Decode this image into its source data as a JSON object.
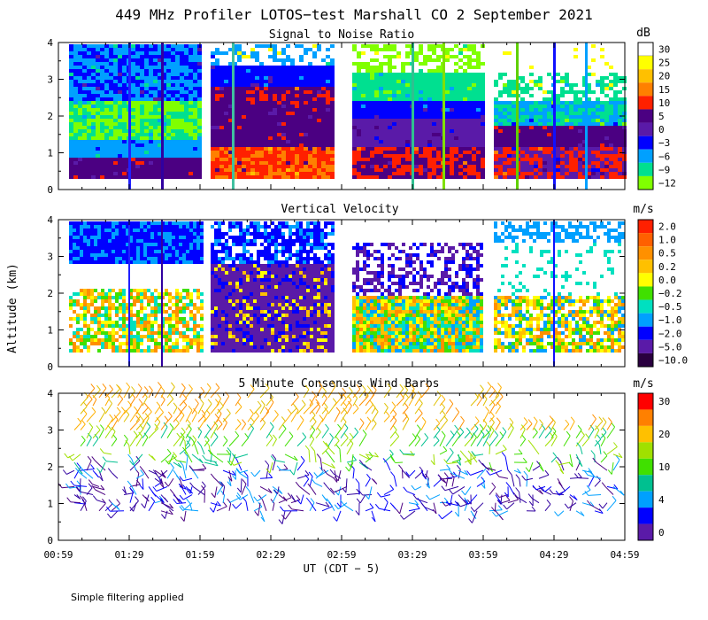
{
  "figure": {
    "title": "449 MHz Profiler LOTOS−test Marshall CO  2 September 2021",
    "y_axis_label": "Altitude (km)",
    "x_axis_label": "UT  (CDT − 5)",
    "footnote": "Simple filtering applied"
  },
  "chart_data": [
    {
      "type": "heatmap",
      "title": "Signal to Noise Ratio",
      "unit": "dB",
      "ylim": [
        0,
        4
      ],
      "yticks": [
        "0",
        "1",
        "2",
        "3",
        "4"
      ],
      "xticks": [
        "00:59",
        "01:29",
        "01:59",
        "02:29",
        "02:59",
        "03:29",
        "03:59",
        "04:29",
        "04:59"
      ],
      "colorbar": {
        "labels": [
          "30",
          "25",
          "20",
          "15",
          "10",
          "5",
          "0",
          "−3",
          "−6",
          "−9",
          "−12"
        ],
        "colors": [
          "#ffffff",
          "#ffff00",
          "#ffc000",
          "#ff8000",
          "#ff2000",
          "#4b0082",
          "#5a1aa8",
          "#0000ff",
          "#00a0ff",
          "#00e090",
          "#80ff00"
        ]
      }
    },
    {
      "type": "heatmap",
      "title": "Vertical Velocity",
      "unit": "m/s",
      "ylim": [
        0,
        4
      ],
      "yticks": [
        "0",
        "1",
        "2",
        "3",
        "4"
      ],
      "colorbar": {
        "labels": [
          "2.0",
          "1.0",
          "0.5",
          "0.2",
          "0.0",
          "−0.2",
          "−0.5",
          "−1.0",
          "−2.0",
          "−5.0",
          "−10.0"
        ],
        "colors": [
          "#ff2000",
          "#ff6000",
          "#ff9000",
          "#ffc000",
          "#ffff00",
          "#40e000",
          "#00e0c0",
          "#00a0ff",
          "#0000ff",
          "#5a1aa8",
          "#2a0040"
        ]
      }
    },
    {
      "type": "scatter",
      "title": "5 Minute Consensus Wind Barbs",
      "unit": "m/s",
      "ylim": [
        0,
        4
      ],
      "yticks": [
        "0",
        "1",
        "2",
        "3",
        "4"
      ],
      "colorbar": {
        "labels": [
          "30",
          "20",
          "10",
          "4",
          "0"
        ],
        "colors": [
          "#ff0000",
          "#ff8000",
          "#ffc000",
          "#a0e000",
          "#40e000",
          "#00c090",
          "#00a0ff",
          "#0000ff",
          "#5a1aa8"
        ]
      }
    }
  ]
}
